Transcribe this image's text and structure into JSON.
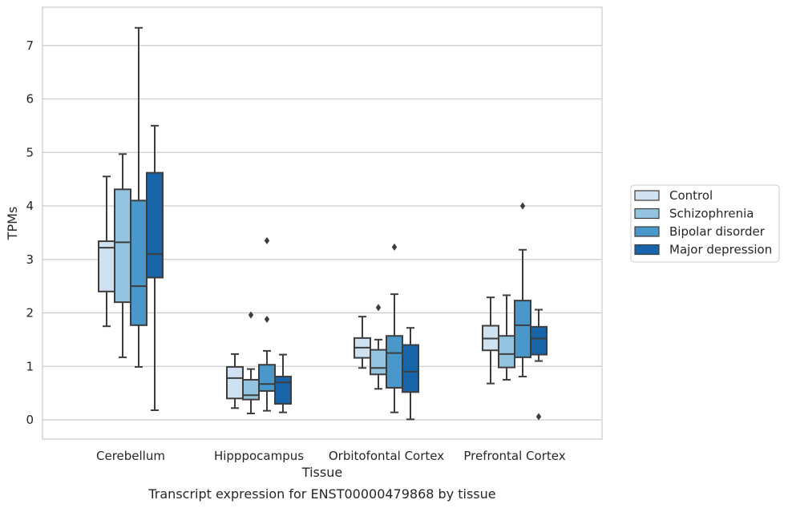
{
  "chart_data": {
    "type": "boxplot",
    "xlabel": "Tissue",
    "ylabel": "TPMs",
    "caption": "Transcript expression for ENST00000479868 by tissue",
    "categories": [
      "Cerebellum",
      "Hipppocampus",
      "Orbitofontal Cortex",
      "Prefrontal Cortex"
    ],
    "ylim": [
      -0.35,
      7.75
    ],
    "yticks": [
      0,
      1,
      2,
      3,
      4,
      5,
      6,
      7
    ],
    "grid": "horizontal",
    "legend_position": "right",
    "series": [
      {
        "name": "Control",
        "color": "#d0e1f2",
        "boxes": [
          {
            "whislo": 1.75,
            "q1": 2.4,
            "med": 3.22,
            "q3": 3.34,
            "whishi": 4.55,
            "fliers": []
          },
          {
            "whislo": 0.22,
            "q1": 0.4,
            "med": 0.78,
            "q3": 0.99,
            "whishi": 1.23,
            "fliers": []
          },
          {
            "whislo": 0.97,
            "q1": 1.16,
            "med": 1.35,
            "q3": 1.53,
            "whishi": 1.93,
            "fliers": []
          },
          {
            "whislo": 0.68,
            "q1": 1.3,
            "med": 1.52,
            "q3": 1.76,
            "whishi": 2.29,
            "fliers": []
          }
        ]
      },
      {
        "name": "Schizophrenia",
        "color": "#94c4df",
        "boxes": [
          {
            "whislo": 1.17,
            "q1": 2.2,
            "med": 3.32,
            "q3": 4.31,
            "whishi": 4.97,
            "fliers": []
          },
          {
            "whislo": 0.12,
            "q1": 0.38,
            "med": 0.46,
            "q3": 0.75,
            "whishi": 0.95,
            "fliers": [
              1.96
            ]
          },
          {
            "whislo": 0.58,
            "q1": 0.85,
            "med": 0.97,
            "q3": 1.31,
            "whishi": 1.5,
            "fliers": [
              2.1
            ]
          },
          {
            "whislo": 0.75,
            "q1": 0.98,
            "med": 1.23,
            "q3": 1.57,
            "whishi": 2.33,
            "fliers": []
          }
        ]
      },
      {
        "name": "Bipolar disorder",
        "color": "#4a98c9",
        "boxes": [
          {
            "whislo": 0.99,
            "q1": 1.77,
            "med": 2.5,
            "q3": 4.1,
            "whishi": 7.33,
            "fliers": []
          },
          {
            "whislo": 0.17,
            "q1": 0.54,
            "med": 0.67,
            "q3": 1.03,
            "whishi": 1.29,
            "fliers": [
              1.88,
              3.35
            ]
          },
          {
            "whislo": 0.14,
            "q1": 0.6,
            "med": 1.25,
            "q3": 1.57,
            "whishi": 2.35,
            "fliers": [
              3.23
            ]
          },
          {
            "whislo": 0.81,
            "q1": 1.17,
            "med": 1.77,
            "q3": 2.23,
            "whishi": 3.18,
            "fliers": [
              4.0
            ]
          }
        ]
      },
      {
        "name": "Major depression",
        "color": "#1764ab",
        "boxes": [
          {
            "whislo": 0.18,
            "q1": 2.66,
            "med": 3.1,
            "q3": 4.62,
            "whishi": 5.5,
            "fliers": []
          },
          {
            "whislo": 0.14,
            "q1": 0.3,
            "med": 0.7,
            "q3": 0.81,
            "whishi": 1.22,
            "fliers": []
          },
          {
            "whislo": 0.01,
            "q1": 0.52,
            "med": 0.9,
            "q3": 1.4,
            "whishi": 1.72,
            "fliers": []
          },
          {
            "whislo": 1.1,
            "q1": 1.22,
            "med": 1.52,
            "q3": 1.74,
            "whishi": 2.06,
            "fliers": [
              0.06
            ]
          }
        ]
      }
    ]
  }
}
